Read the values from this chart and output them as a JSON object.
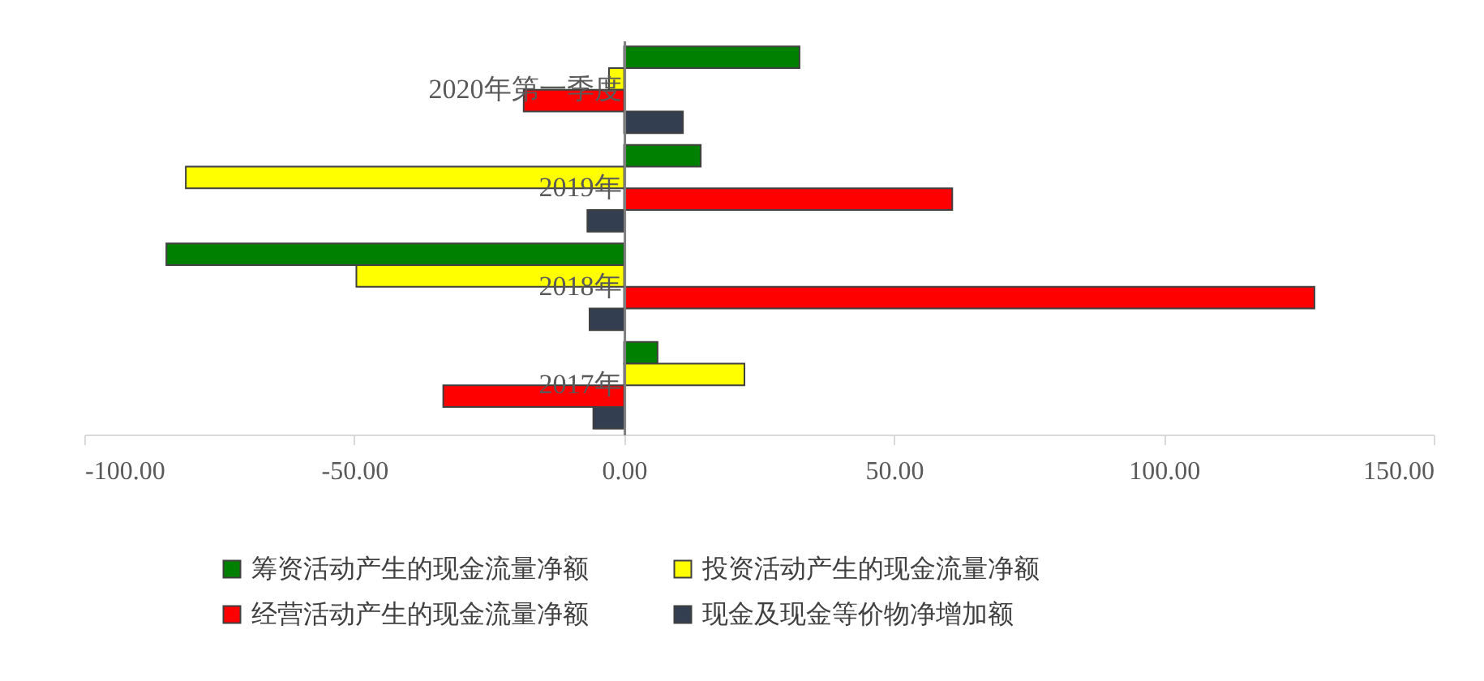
{
  "chart_data": {
    "type": "bar",
    "orientation": "horizontal",
    "categories": [
      "2020年第一季度",
      "2019年",
      "2018年",
      "2017年"
    ],
    "series": [
      {
        "name": "筹资活动产生的现金流量净额",
        "color": "#008000",
        "values": [
          32.5,
          14.2,
          -84.8,
          6.2
        ]
      },
      {
        "name": "投资活动产生的现金流量净额",
        "color": "#ffff00",
        "values": [
          -2.8,
          -81.2,
          -49.6,
          22.3
        ]
      },
      {
        "name": "经营活动产生的现金流量净额",
        "color": "#ff0000",
        "values": [
          -18.6,
          60.8,
          127.9,
          -33.5
        ]
      },
      {
        "name": "现金及现金等价物净增加额",
        "color": "#333f50",
        "values": [
          10.9,
          -6.8,
          -6.4,
          -5.7
        ]
      }
    ],
    "xlim": [
      -100,
      150
    ],
    "xticks": [
      {
        "value": -100,
        "label": "-100.00"
      },
      {
        "value": -50,
        "label": "-50.00"
      },
      {
        "value": 0,
        "label": "0.00"
      },
      {
        "value": 50,
        "label": "50.00"
      },
      {
        "value": 100,
        "label": "100.00"
      },
      {
        "value": 150,
        "label": "150.00"
      }
    ],
    "grid": false,
    "legend": "bottom"
  }
}
